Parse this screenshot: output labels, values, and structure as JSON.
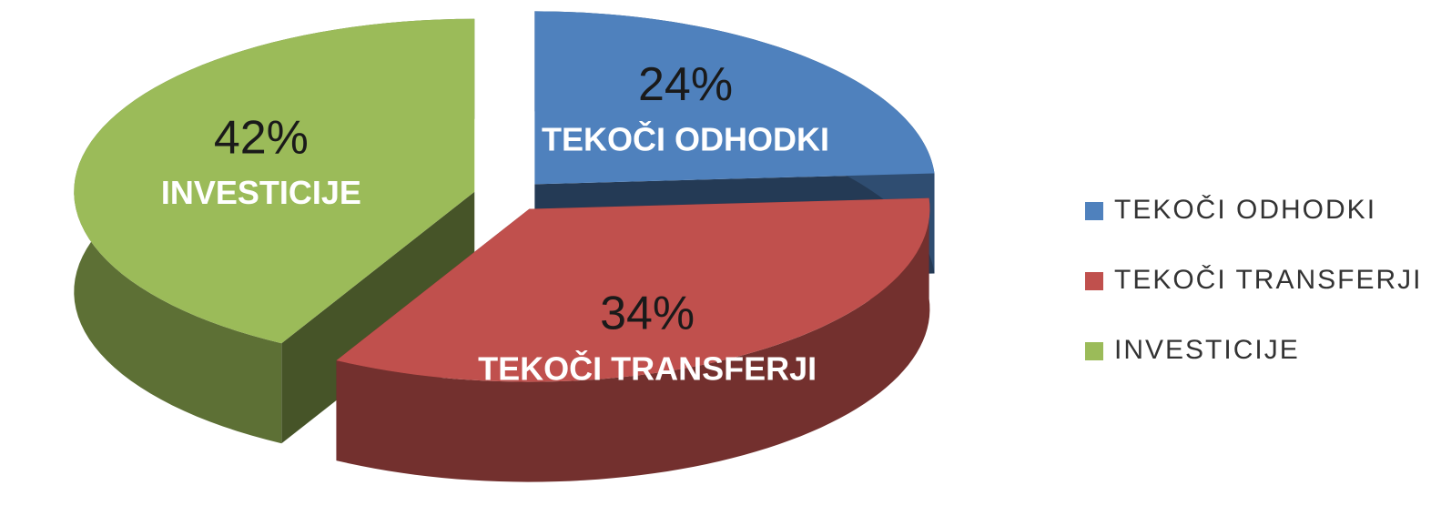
{
  "chart_data": {
    "type": "pie",
    "categories": [
      "TEKOČI ODHODKI",
      "TEKOČI TRANSFERJI",
      "INVESTICIJE"
    ],
    "values": [
      24,
      34,
      42
    ],
    "value_labels": [
      "24%",
      "34%",
      "42%"
    ],
    "colors": [
      "#4f81bd",
      "#c0504d",
      "#9bbb59"
    ],
    "legend": "right"
  }
}
